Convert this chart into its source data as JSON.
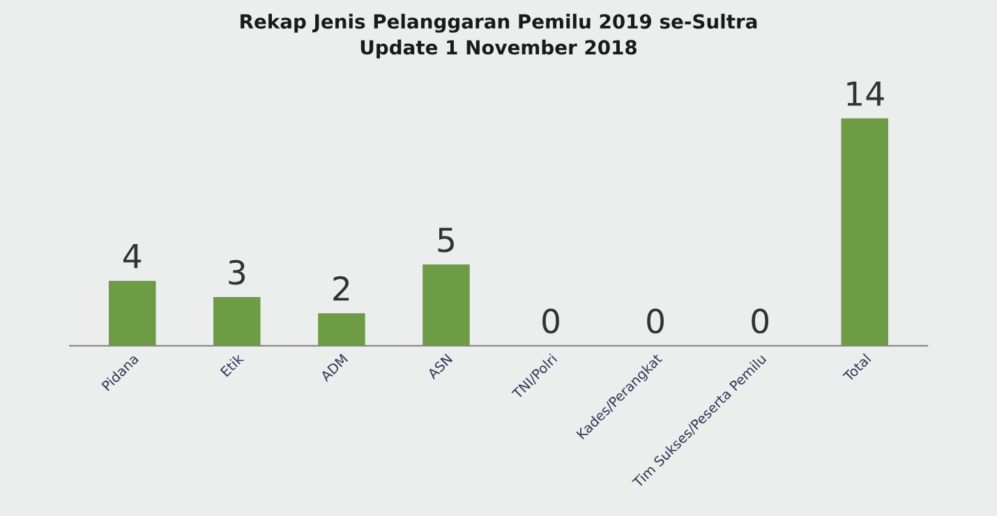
{
  "chart_data": {
    "type": "bar",
    "title": "Rekap Jenis Pelanggaran Pemilu 2019 se-Sultra",
    "subtitle": "Update 1 November 2018",
    "categories": [
      "Pidana",
      "Etik",
      "ADM",
      "ASN",
      "TNI/Polri",
      "Kades/Perangkat",
      "Tim Sukses/Peserta Pemilu",
      "Total"
    ],
    "values": [
      4,
      3,
      2,
      5,
      0,
      0,
      0,
      14
    ],
    "color": "#6e9c46",
    "data_labels": true,
    "grid": false,
    "legend": false,
    "tick_labels": "x"
  }
}
